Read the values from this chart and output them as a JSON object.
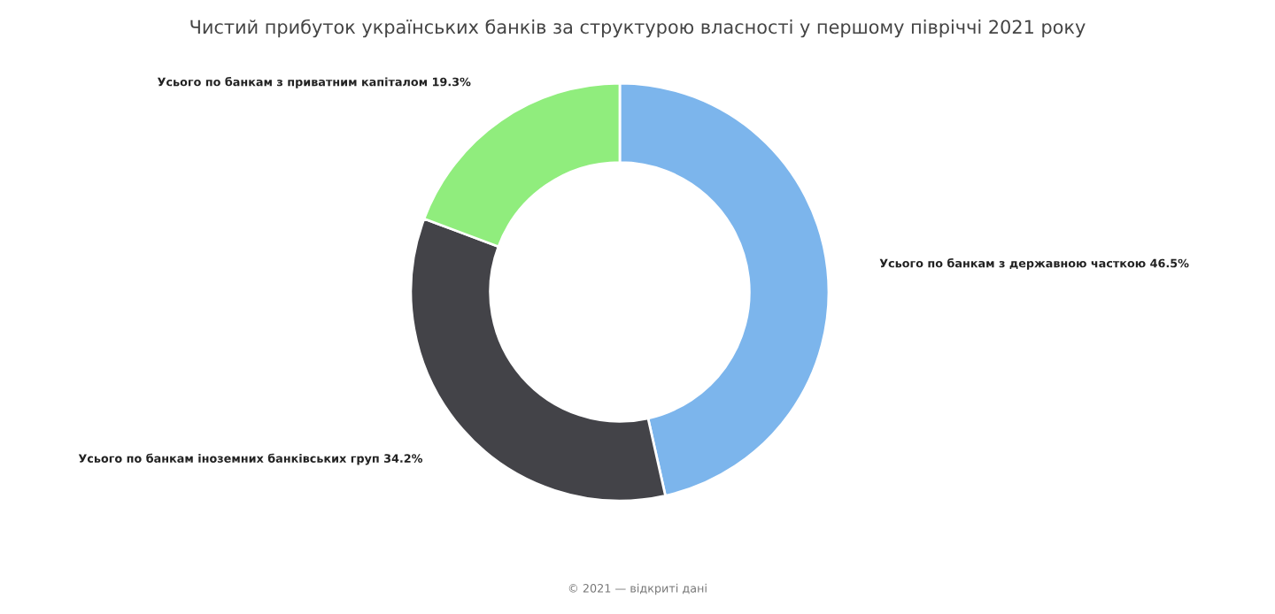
{
  "chart_data": {
    "type": "donut",
    "title": "Чистий прибуток українських банків за структурою власності у першому півріччі 2021 року",
    "categories": [
      "Усього по банкам з державною часткою",
      "Усього по банкам іноземних банківських груп",
      "Усього по банкам з приватним капіталом"
    ],
    "values": [
      46.5,
      34.2,
      19.3
    ],
    "value_labels": [
      "46.5%",
      "34.2%",
      "19.3%"
    ],
    "colors": [
      "#7cb5ec",
      "#434348",
      "#90ed7d"
    ],
    "legend": false,
    "annotations": [
      "© 2021 — відкриті дані"
    ]
  }
}
